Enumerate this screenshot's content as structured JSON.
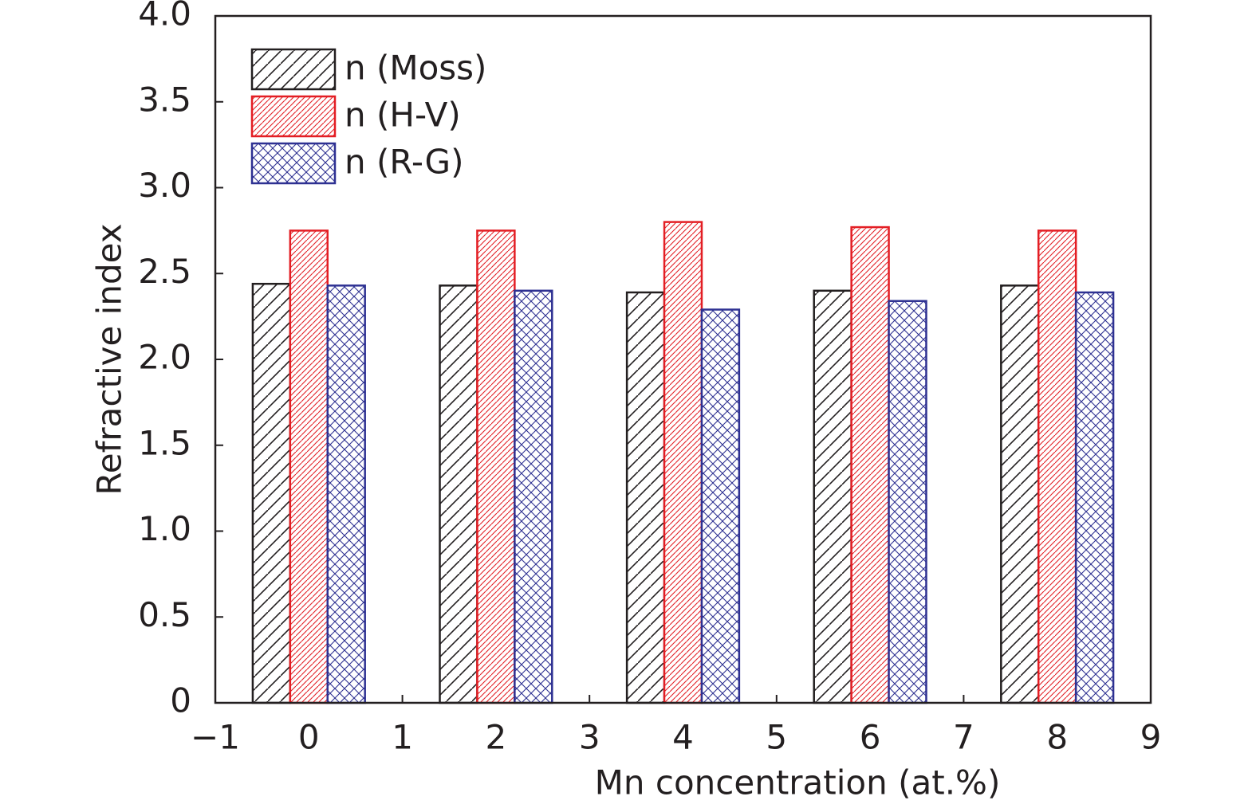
{
  "chart_data": {
    "type": "bar",
    "x_label": "Mn concentration (at.%)",
    "y_label": "Refractive index",
    "x": [
      0,
      2,
      4,
      6,
      8
    ],
    "series": [
      {
        "name": "n (Moss)",
        "color": "#231f20",
        "hatch": "/",
        "values": [
          2.44,
          2.43,
          2.39,
          2.4,
          2.43
        ]
      },
      {
        "name": "n (H-V)",
        "color": "#e31e24",
        "hatch": "///",
        "values": [
          2.75,
          2.75,
          2.8,
          2.77,
          2.75
        ]
      },
      {
        "name": "n (R-G)",
        "color": "#2e3192",
        "hatch": "x",
        "values": [
          2.43,
          2.4,
          2.29,
          2.34,
          2.39
        ]
      }
    ],
    "xlim": [
      -1,
      9
    ],
    "xticks": [
      {
        "value": -1,
        "label": "−1"
      },
      0,
      1,
      2,
      3,
      4,
      5,
      6,
      7,
      8,
      9
    ],
    "ylim": [
      0,
      4
    ],
    "yticks": [
      0,
      0.5,
      {
        "value": 1,
        "label": "1.0"
      },
      1.5,
      {
        "value": 2,
        "label": "2.0"
      },
      2.5,
      {
        "value": 3,
        "label": "3.0"
      },
      3.5,
      {
        "value": 4,
        "label": "4.0"
      }
    ],
    "legend": "upper left",
    "grid": false
  }
}
